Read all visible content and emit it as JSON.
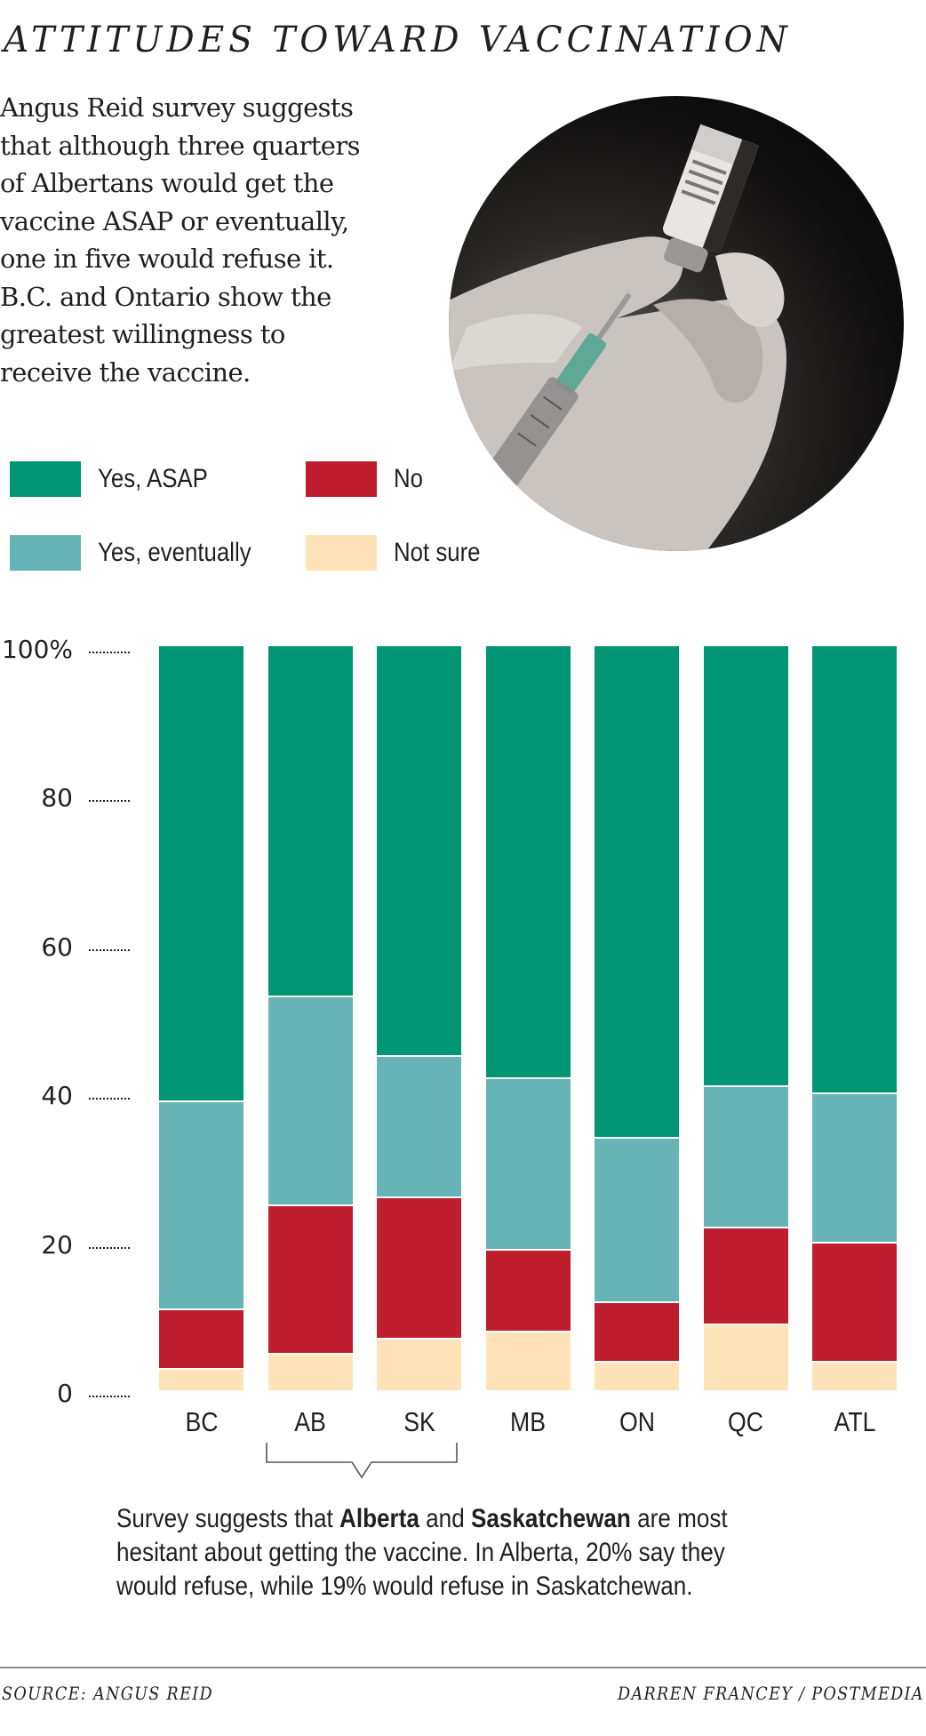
{
  "header": {
    "title": "ATTITUDES TOWARD VACCINATION",
    "description_lines": [
      "Angus Reid survey suggests",
      "that although three quarters",
      "of Albertans would get the",
      "vaccine ASAP or eventually,",
      "one in five would refuse it.",
      "B.C. and Ontario show the",
      "greatest willingness to",
      "receive the vaccine."
    ]
  },
  "photo": {
    "subject": "gloved hand drawing vaccine from vial with syringe",
    "icon": "vaccine-photo"
  },
  "legend": {
    "items": [
      {
        "label": "Yes, ASAP",
        "color": "#009673"
      },
      {
        "label": "No",
        "color": "#be1e2d"
      },
      {
        "label": "Yes, eventually",
        "color": "#66b4b5"
      },
      {
        "label": "Not sure",
        "color": "#fee3b8"
      }
    ]
  },
  "annotation": {
    "line1_pre": "Survey suggests that ",
    "line1_bold1": "Alberta",
    "line1_mid": " and ",
    "line1_bold2": "Saskatchewan",
    "line1_post": " are most",
    "line2": "hesitant about getting the vaccine. In Alberta, 20% say they",
    "line3": "would refuse, while 19% would refuse in Saskatchewan.",
    "bracket_categories": [
      "AB",
      "SK"
    ]
  },
  "footer": {
    "source": "SOURCE: ANGUS REID",
    "credit": "DARREN FRANCEY / POSTMEDIA"
  },
  "chart_data": {
    "type": "bar",
    "stacked": true,
    "title": "ATTITUDES TOWARD VACCINATION",
    "xlabel": "",
    "ylabel": "",
    "ylim": [
      0,
      100
    ],
    "yticks": [
      0,
      20,
      40,
      60,
      80,
      100
    ],
    "ytick_labels": [
      "0",
      "20",
      "40",
      "60",
      "80",
      "100%"
    ],
    "grid": false,
    "legend_position": "top-left",
    "categories": [
      "BC",
      "AB",
      "SK",
      "MB",
      "ON",
      "QC",
      "ATL"
    ],
    "series": [
      {
        "name": "Not sure",
        "color": "#fee3b8",
        "values": [
          3,
          5,
          7,
          8,
          4,
          9,
          4
        ]
      },
      {
        "name": "No",
        "color": "#be1e2d",
        "values": [
          8,
          20,
          19,
          11,
          8,
          13,
          16
        ]
      },
      {
        "name": "Yes, eventually",
        "color": "#66b4b5",
        "values": [
          28,
          28,
          19,
          23,
          22,
          19,
          20
        ]
      },
      {
        "name": "Yes, ASAP",
        "color": "#009673",
        "values": [
          61,
          47,
          55,
          58,
          66,
          59,
          60
        ]
      }
    ]
  }
}
